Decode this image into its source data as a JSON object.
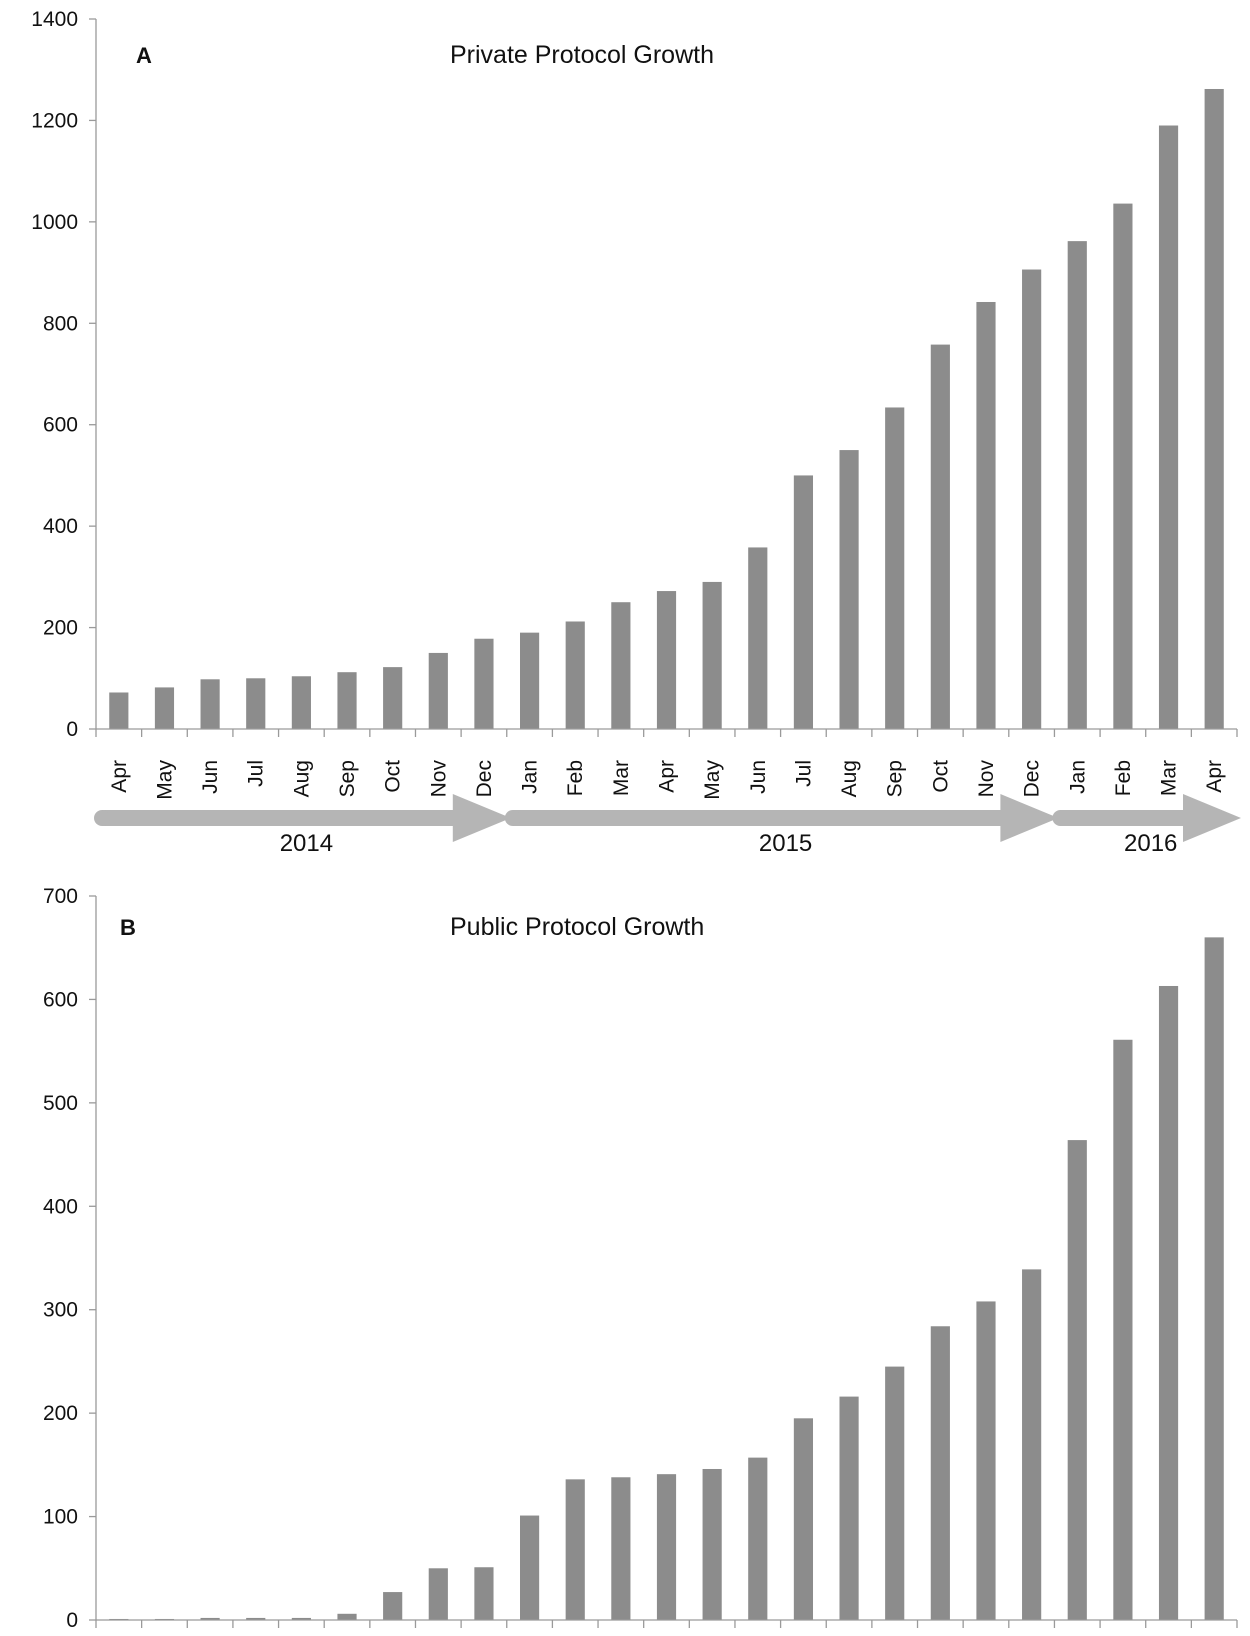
{
  "chart_data": [
    {
      "type": "bar",
      "panel_letter": "A",
      "title": "Private Protocol Growth",
      "xlabel": "",
      "ylabel": "",
      "categories": [
        "Apr",
        "May",
        "Jun",
        "Jul",
        "Aug",
        "Sep",
        "Oct",
        "Nov",
        "Dec",
        "Jan",
        "Feb",
        "Mar",
        "Apr",
        "May",
        "Jun",
        "Jul",
        "Aug",
        "Sep",
        "Oct",
        "Nov",
        "Dec",
        "Jan",
        "Feb",
        "Mar",
        "Apr"
      ],
      "values": [
        72,
        82,
        98,
        100,
        104,
        112,
        122,
        150,
        178,
        190,
        212,
        250,
        272,
        290,
        358,
        500,
        550,
        634,
        758,
        842,
        906,
        962,
        1036,
        1190,
        1262
      ],
      "ylim": [
        0,
        1400
      ],
      "yticks": [
        0,
        200,
        400,
        600,
        800,
        1000,
        1200,
        1400
      ],
      "show_month_labels": true,
      "years": [
        {
          "label": "2014",
          "from": 0,
          "to": 8
        },
        {
          "label": "2015",
          "from": 9,
          "to": 20
        },
        {
          "label": "2016",
          "from": 21,
          "to": 24
        }
      ],
      "grid": false,
      "bar_color": "#8c8c8c",
      "arrow_color": "#b5b5b5"
    },
    {
      "type": "bar",
      "panel_letter": "B",
      "title": "Public Protocol Growth",
      "xlabel": "",
      "ylabel": "",
      "categories": [
        "Apr",
        "May",
        "Jun",
        "Jul",
        "Aug",
        "Sep",
        "Oct",
        "Nov",
        "Dec",
        "Jan",
        "Feb",
        "Mar",
        "Apr",
        "May",
        "Jun",
        "Jul",
        "Aug",
        "Sep",
        "Oct",
        "Nov",
        "Dec",
        "Jan",
        "Feb",
        "Mar",
        "Apr"
      ],
      "values": [
        1,
        1,
        2,
        2,
        2,
        6,
        27,
        50,
        51,
        101,
        136,
        138,
        141,
        146,
        157,
        195,
        216,
        245,
        284,
        308,
        339,
        464,
        561,
        613,
        660
      ],
      "ylim": [
        0,
        700
      ],
      "yticks": [
        0,
        100,
        200,
        300,
        400,
        500,
        600,
        700
      ],
      "show_month_labels": false,
      "grid": false,
      "bar_color": "#8c8c8c"
    }
  ]
}
